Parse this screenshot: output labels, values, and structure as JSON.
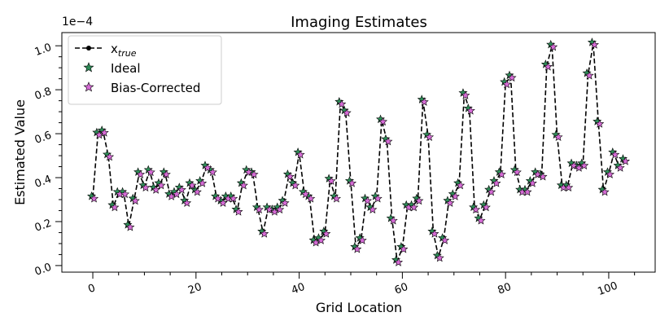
{
  "chart_data": {
    "type": "line",
    "title": "Imaging Estimates",
    "xlabel": "Grid Location",
    "ylabel": "Estimated Value",
    "y_scale_factor_label": "1e−4",
    "xlim": [
      -6,
      109
    ],
    "ylim": [
      -0.03,
      1.06
    ],
    "xticks": [
      0,
      20,
      40,
      60,
      80,
      100
    ],
    "yticks": [
      0.0,
      0.2,
      0.4,
      0.6,
      0.8,
      1.0
    ],
    "ytick_labels": [
      "0.0",
      "0.2",
      "0.4",
      "0.6",
      "0.8",
      "1.0"
    ],
    "grid": false,
    "legend_position": "upper-left",
    "series": [
      {
        "name": "x_true",
        "style": "dashed-line-with-dots",
        "color": "#000000",
        "x": [
          0,
          1,
          2,
          3,
          4,
          5,
          6,
          7,
          8,
          9,
          10,
          11,
          12,
          13,
          14,
          15,
          16,
          17,
          18,
          19,
          20,
          21,
          22,
          23,
          24,
          25,
          26,
          27,
          28,
          29,
          30,
          31,
          32,
          33,
          34,
          35,
          36,
          37,
          38,
          39,
          40,
          41,
          42,
          43,
          44,
          45,
          46,
          47,
          48,
          49,
          50,
          51,
          52,
          53,
          54,
          55,
          56,
          57,
          58,
          59,
          60,
          61,
          62,
          63,
          64,
          65,
          66,
          67,
          68,
          69,
          70,
          71,
          72,
          73,
          74,
          75,
          76,
          77,
          78,
          79,
          80,
          81,
          82,
          83,
          84,
          85,
          86,
          87,
          88,
          89,
          90,
          91,
          92,
          93,
          94,
          95,
          96,
          97,
          98,
          99,
          100,
          101,
          102,
          103
        ],
        "values": [
          0.31,
          0.6,
          0.61,
          0.5,
          0.27,
          0.33,
          0.33,
          0.18,
          0.3,
          0.42,
          0.36,
          0.43,
          0.35,
          0.37,
          0.42,
          0.32,
          0.33,
          0.35,
          0.29,
          0.37,
          0.34,
          0.38,
          0.45,
          0.43,
          0.31,
          0.29,
          0.31,
          0.31,
          0.25,
          0.37,
          0.43,
          0.42,
          0.26,
          0.15,
          0.26,
          0.25,
          0.26,
          0.29,
          0.41,
          0.37,
          0.51,
          0.33,
          0.31,
          0.11,
          0.12,
          0.15,
          0.39,
          0.31,
          0.74,
          0.7,
          0.38,
          0.08,
          0.12,
          0.3,
          0.26,
          0.31,
          0.66,
          0.57,
          0.21,
          0.02,
          0.08,
          0.27,
          0.27,
          0.3,
          0.75,
          0.59,
          0.15,
          0.04,
          0.12,
          0.29,
          0.32,
          0.37,
          0.78,
          0.71,
          0.26,
          0.21,
          0.27,
          0.34,
          0.38,
          0.42,
          0.83,
          0.86,
          0.43,
          0.34,
          0.34,
          0.38,
          0.42,
          0.41,
          0.91,
          1.0,
          0.59,
          0.36,
          0.36,
          0.46,
          0.45,
          0.46,
          0.87,
          1.01,
          0.65,
          0.34,
          0.42,
          0.51,
          0.45,
          0.48
        ]
      },
      {
        "name": "Ideal",
        "style": "star-markers",
        "color": "#2e8b57",
        "values": "same as x_true"
      },
      {
        "name": "Bias-Corrected",
        "style": "star-markers",
        "color": "#d66bd6",
        "values": "same as x_true"
      }
    ]
  }
}
